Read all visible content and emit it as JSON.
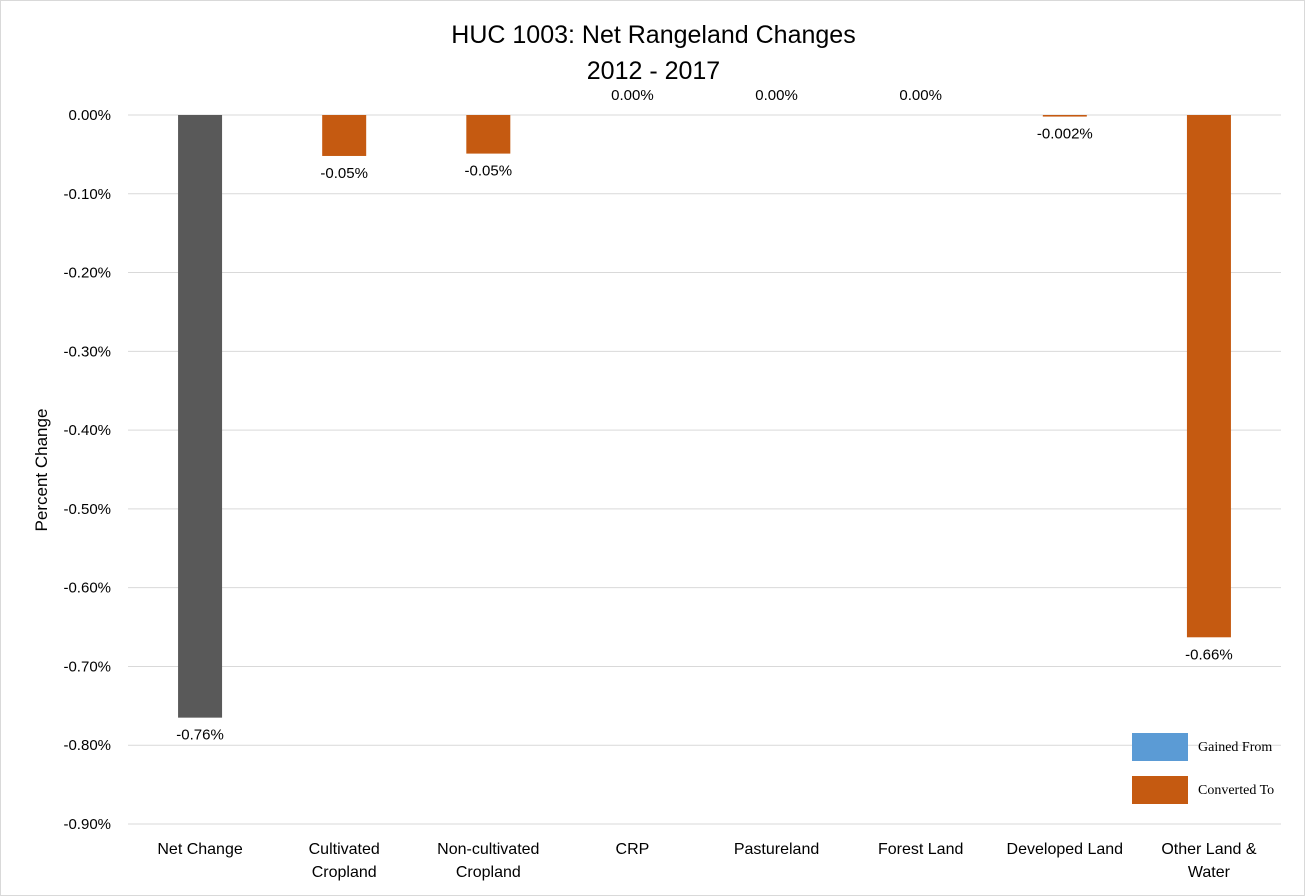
{
  "chart_data": {
    "type": "bar",
    "title": "HUC 1003: Net Rangeland Changes",
    "subtitle": "2012 - 2017",
    "ylabel": "Percent Change",
    "xlabel": "",
    "ylim": [
      -0.9,
      0.0
    ],
    "yticks": [
      "0.00%",
      "-0.10%",
      "-0.20%",
      "-0.30%",
      "-0.40%",
      "-0.50%",
      "-0.60%",
      "-0.70%",
      "-0.80%",
      "-0.90%"
    ],
    "ytick_values": [
      0.0,
      -0.1,
      -0.2,
      -0.3,
      -0.4,
      -0.5,
      -0.6,
      -0.7,
      -0.8,
      -0.9
    ],
    "grid": true,
    "legend_position": "bottom-right",
    "categories": [
      [
        "Net Change"
      ],
      [
        "Cultivated",
        "Cropland"
      ],
      [
        "Non-cultivated",
        "Cropland"
      ],
      [
        "CRP"
      ],
      [
        "Pastureland"
      ],
      [
        "Forest Land"
      ],
      [
        "Developed Land"
      ],
      [
        "Other Land &",
        "Water"
      ]
    ],
    "values": [
      -0.765,
      -0.052,
      -0.049,
      0.0,
      0.0,
      0.0,
      -0.002,
      -0.663
    ],
    "data_labels": [
      "-0.76%",
      "-0.05%",
      "-0.05%",
      "0.00%",
      "0.00%",
      "0.00%",
      "-0.002%",
      "-0.66%"
    ],
    "bar_series": [
      "net",
      "converted",
      "converted",
      "converted",
      "converted",
      "converted",
      "converted",
      "converted"
    ],
    "colors": {
      "net": "#595959",
      "gained": "#5b9bd5",
      "converted": "#c55a11",
      "grid": "#d9d9d9"
    },
    "legend": [
      {
        "label": "Gained From",
        "key": "gained"
      },
      {
        "label": "Converted To",
        "key": "converted"
      }
    ]
  }
}
